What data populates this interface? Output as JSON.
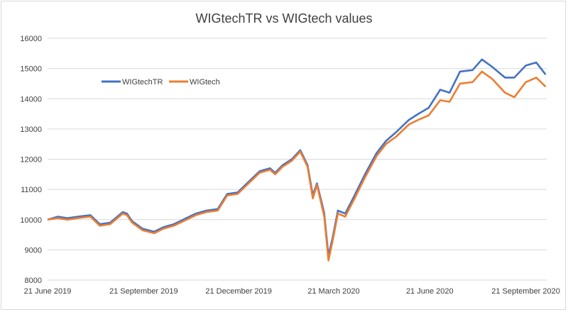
{
  "chart_data": {
    "type": "line",
    "title": "WIGtechTR vs WIGtech values",
    "xlabel": "",
    "ylabel": "",
    "ylim": [
      8000,
      16000
    ],
    "y_ticks": [
      "8000",
      "9000",
      "10000",
      "11000",
      "12000",
      "13000",
      "14000",
      "15000",
      "16000"
    ],
    "x_tick_labels": [
      "21 June 2019",
      "21 September 2019",
      "21 December 2019",
      "21 March 2020",
      "21 June 2020",
      "21 September 2020"
    ],
    "grid": "horizontal",
    "legend_position": "upper-left inside plot",
    "colors": {
      "WIGtechTR": "#4472c4",
      "WIGtech": "#ed7d31"
    },
    "series": [
      {
        "name": "WIGtechTR",
        "x": [
          "2019-06-21",
          "2019-07-01",
          "2019-07-10",
          "2019-07-20",
          "2019-08-01",
          "2019-08-10",
          "2019-08-20",
          "2019-09-01",
          "2019-09-05",
          "2019-09-10",
          "2019-09-20",
          "2019-10-01",
          "2019-10-10",
          "2019-10-20",
          "2019-11-01",
          "2019-11-10",
          "2019-11-20",
          "2019-12-01",
          "2019-12-10",
          "2019-12-20",
          "2020-01-01",
          "2020-01-10",
          "2020-01-20",
          "2020-01-25",
          "2020-02-01",
          "2020-02-10",
          "2020-02-18",
          "2020-02-25",
          "2020-03-01",
          "2020-03-05",
          "2020-03-10",
          "2020-03-12",
          "2020-03-16",
          "2020-03-20",
          "2020-03-25",
          "2020-04-01",
          "2020-04-10",
          "2020-04-20",
          "2020-05-01",
          "2020-05-10",
          "2020-05-20",
          "2020-06-01",
          "2020-06-10",
          "2020-06-20",
          "2020-07-01",
          "2020-07-10",
          "2020-07-20",
          "2020-08-01",
          "2020-08-10",
          "2020-08-20",
          "2020-09-01",
          "2020-09-10",
          "2020-09-21",
          "2020-10-01",
          "2020-10-10"
        ],
        "values": [
          10000,
          10100,
          10050,
          10100,
          10150,
          9850,
          9900,
          10250,
          10200,
          9950,
          9700,
          9600,
          9750,
          9850,
          10050,
          10200,
          10300,
          10350,
          10850,
          10900,
          11300,
          11600,
          11700,
          11550,
          11800,
          12000,
          12300,
          11800,
          10800,
          11200,
          10500,
          10200,
          8800,
          9400,
          10300,
          10200,
          10800,
          11500,
          12200,
          12600,
          12900,
          13300,
          13500,
          13700,
          14300,
          14200,
          14900,
          14950,
          15300,
          15050,
          14700,
          14700,
          15100,
          15200,
          14800
        ]
      },
      {
        "name": "WIGtech",
        "x": [
          "2019-06-21",
          "2019-07-01",
          "2019-07-10",
          "2019-07-20",
          "2019-08-01",
          "2019-08-10",
          "2019-08-20",
          "2019-09-01",
          "2019-09-05",
          "2019-09-10",
          "2019-09-20",
          "2019-10-01",
          "2019-10-10",
          "2019-10-20",
          "2019-11-01",
          "2019-11-10",
          "2019-11-20",
          "2019-12-01",
          "2019-12-10",
          "2019-12-20",
          "2020-01-01",
          "2020-01-10",
          "2020-01-20",
          "2020-01-25",
          "2020-02-01",
          "2020-02-10",
          "2020-02-18",
          "2020-02-25",
          "2020-03-01",
          "2020-03-05",
          "2020-03-10",
          "2020-03-12",
          "2020-03-16",
          "2020-03-20",
          "2020-03-25",
          "2020-04-01",
          "2020-04-10",
          "2020-04-20",
          "2020-05-01",
          "2020-05-10",
          "2020-05-20",
          "2020-06-01",
          "2020-06-10",
          "2020-06-20",
          "2020-07-01",
          "2020-07-10",
          "2020-07-20",
          "2020-08-01",
          "2020-08-10",
          "2020-08-20",
          "2020-09-01",
          "2020-09-10",
          "2020-09-21",
          "2020-10-01",
          "2020-10-10"
        ],
        "values": [
          10000,
          10050,
          10000,
          10050,
          10100,
          9800,
          9850,
          10200,
          10150,
          9900,
          9650,
          9550,
          9700,
          9800,
          10000,
          10150,
          10250,
          10300,
          10800,
          10850,
          11250,
          11550,
          11650,
          11500,
          11750,
          11950,
          12250,
          11750,
          10700,
          11150,
          10400,
          10100,
          8650,
          9300,
          10200,
          10100,
          10700,
          11400,
          12100,
          12500,
          12750,
          13150,
          13300,
          13450,
          13950,
          13900,
          14500,
          14550,
          14900,
          14650,
          14200,
          14050,
          14550,
          14700,
          14400
        ]
      }
    ]
  }
}
